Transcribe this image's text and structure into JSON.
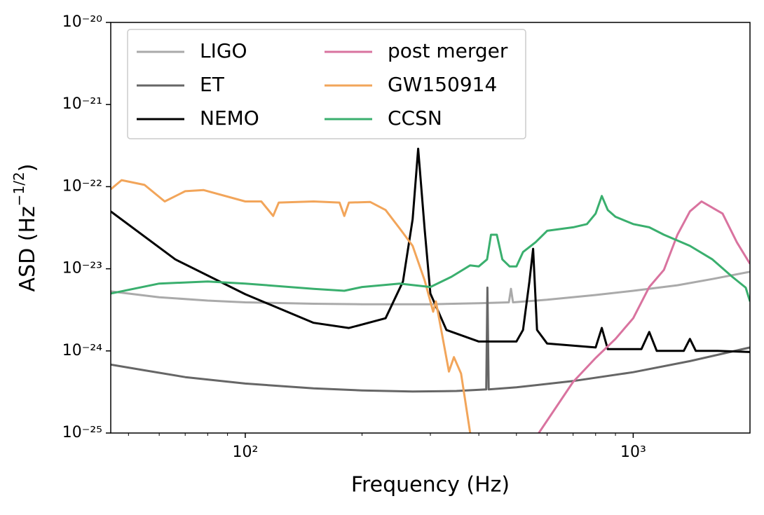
{
  "chart_data": {
    "type": "line",
    "x_label": "Frequency (Hz)",
    "y_label": [
      "ASD (Hz",
      "−1/2",
      ")"
    ],
    "xscale": "log",
    "yscale": "log",
    "xlim": [
      45,
      2000
    ],
    "ylim": [
      1e-25,
      1e-20
    ],
    "xticks": [
      {
        "value": 100,
        "label": "10²"
      },
      {
        "value": 1000,
        "label": "10³"
      }
    ],
    "xminorticks": [
      50,
      60,
      70,
      80,
      90,
      200,
      300,
      400,
      500,
      600,
      700,
      800,
      900
    ],
    "yticks": [
      {
        "value": 1e-25,
        "label": "10⁻²⁵"
      },
      {
        "value": 1e-24,
        "label": "10⁻²⁴"
      },
      {
        "value": 1e-23,
        "label": "10⁻²³"
      },
      {
        "value": 1e-22,
        "label": "10⁻²²"
      },
      {
        "value": 1e-21,
        "label": "10⁻²¹"
      },
      {
        "value": 1e-20,
        "label": "10⁻²⁰"
      }
    ],
    "legend": "upper left",
    "legend_columns": 2,
    "series": [
      {
        "name": "LIGO",
        "color": "#aaaaaa",
        "x": [
          45,
          60,
          80,
          100,
          150,
          200,
          300,
          400,
          478,
          484,
          490,
          600,
          800,
          1000,
          1300,
          1600,
          2000
        ],
        "values": [
          5.3e-24,
          4.5e-24,
          4.1e-24,
          3.9e-24,
          3.75e-24,
          3.7e-24,
          3.7e-24,
          3.8e-24,
          3.9e-24,
          5.7e-24,
          3.9e-24,
          4.2e-24,
          4.8e-24,
          5.4e-24,
          6.3e-24,
          7.5e-24,
          9.2e-24
        ]
      },
      {
        "name": "ET",
        "color": "#666666",
        "x": [
          45,
          55,
          70,
          100,
          150,
          200,
          270,
          350,
          418,
          421,
          424,
          500,
          700,
          1000,
          1400,
          2000
        ],
        "values": [
          6.8e-25,
          5.8e-25,
          4.8e-25,
          4e-25,
          3.5e-25,
          3.3e-25,
          3.2e-25,
          3.25e-25,
          3.4e-25,
          5.9e-24,
          3.4e-25,
          3.6e-25,
          4.3e-25,
          5.5e-25,
          7.5e-25,
          1.1e-24
        ]
      },
      {
        "name": "NEMO",
        "color": "#000000",
        "x": [
          45,
          66,
          100,
          150,
          185,
          230,
          255,
          270,
          279,
          290,
          300,
          330,
          400,
          500,
          520,
          540,
          552,
          565,
          600,
          800,
          830,
          860,
          1050,
          1100,
          1150,
          1350,
          1400,
          1450,
          1650,
          2000
        ],
        "values": [
          5e-23,
          1.3e-23,
          4.9e-24,
          2.2e-24,
          1.9e-24,
          2.5e-24,
          7e-24,
          4e-23,
          2.9e-22,
          3e-23,
          5e-24,
          1.8e-24,
          1.3e-24,
          1.3e-24,
          1.8e-24,
          7e-24,
          1.75e-23,
          1.8e-24,
          1.23e-24,
          1.1e-24,
          1.9e-24,
          1.05e-24,
          1.05e-24,
          1.7e-24,
          1e-24,
          1e-24,
          1.4e-24,
          1e-24,
          1e-24,
          9.7e-25
        ]
      },
      {
        "name": "post merger",
        "color": "#d9739f",
        "x": [
          571,
          700,
          800,
          900,
          1000,
          1100,
          1200,
          1300,
          1400,
          1500,
          1700,
          1850,
          2000
        ],
        "values": [
          1e-25,
          4.2e-25,
          8.2e-25,
          1.4e-24,
          2.5e-24,
          6e-24,
          9.7e-24,
          2.6e-23,
          5e-23,
          6.6e-23,
          4.7e-23,
          2.1e-23,
          1.15e-23
        ]
      },
      {
        "name": "GW150914",
        "color": "#f2a55a",
        "x": [
          45,
          48,
          55,
          62,
          70,
          78,
          100,
          110,
          118,
          122,
          150,
          175,
          180,
          185,
          210,
          230,
          250,
          270,
          290,
          305,
          310,
          320,
          335,
          345,
          360,
          380
        ],
        "values": [
          9.3e-23,
          1.2e-22,
          1.05e-22,
          6.6e-23,
          8.8e-23,
          9.1e-23,
          6.6e-23,
          6.6e-23,
          4.4e-23,
          6.4e-23,
          6.6e-23,
          6.4e-23,
          4.4e-23,
          6.4e-23,
          6.5e-23,
          5.2e-23,
          3.1e-23,
          1.9e-23,
          7.2e-24,
          3e-24,
          4e-24,
          1.8e-24,
          5.6e-25,
          8.4e-25,
          5.3e-25,
          1e-25
        ]
      },
      {
        "name": "CCSN",
        "color": "#3aaf6e",
        "x": [
          45,
          60,
          80,
          100,
          150,
          180,
          200,
          250,
          300,
          340,
          380,
          400,
          420,
          430,
          445,
          460,
          480,
          500,
          520,
          560,
          600,
          700,
          760,
          800,
          830,
          860,
          900,
          1000,
          1100,
          1200,
          1400,
          1600,
          1800,
          1950,
          2000
        ],
        "values": [
          5e-24,
          6.6e-24,
          7e-24,
          6.6e-24,
          5.7e-24,
          5.4e-24,
          6e-24,
          6.6e-24,
          6e-24,
          8e-24,
          1.1e-23,
          1.07e-23,
          1.3e-23,
          2.6e-23,
          2.6e-23,
          1.3e-23,
          1.07e-23,
          1.07e-23,
          1.6e-23,
          2.1e-23,
          2.9e-23,
          3.2e-23,
          3.5e-23,
          4.7e-23,
          7.7e-23,
          5.2e-23,
          4.3e-23,
          3.5e-23,
          3.2e-23,
          2.6e-23,
          1.9e-23,
          1.3e-23,
          8e-24,
          5.9e-24,
          4e-24
        ]
      }
    ]
  }
}
